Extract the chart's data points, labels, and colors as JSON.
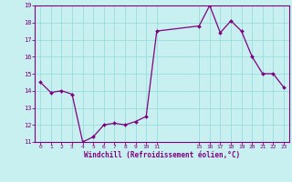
{
  "x": [
    0,
    1,
    2,
    3,
    4,
    5,
    6,
    7,
    8,
    9,
    10,
    11,
    15,
    16,
    17,
    18,
    19,
    20,
    21,
    22,
    23
  ],
  "y": [
    14.5,
    13.9,
    14.0,
    13.8,
    11.0,
    11.3,
    12.0,
    12.1,
    12.0,
    12.2,
    12.5,
    17.5,
    17.8,
    19.0,
    17.4,
    18.1,
    17.5,
    16.0,
    15.0,
    15.0,
    14.2
  ],
  "line_color": "#800080",
  "marker_color": "#800080",
  "bg_color": "#c8f0f0",
  "grid_color": "#99dddd",
  "axis_color": "#800080",
  "tick_color": "#800080",
  "xlabel": "Windchill (Refroidissement éolien,°C)",
  "xlabel_color": "#800080",
  "xlim": [
    -0.5,
    23.5
  ],
  "ylim": [
    11,
    19
  ],
  "xticks": [
    0,
    1,
    2,
    3,
    4,
    5,
    6,
    7,
    8,
    9,
    10,
    11,
    15,
    16,
    17,
    18,
    19,
    20,
    21,
    22,
    23
  ],
  "yticks": [
    11,
    12,
    13,
    14,
    15,
    16,
    17,
    18,
    19
  ],
  "ytick_labels": [
    "11",
    "12",
    "13",
    "14",
    "15",
    "16",
    "17",
    "18",
    "19"
  ]
}
